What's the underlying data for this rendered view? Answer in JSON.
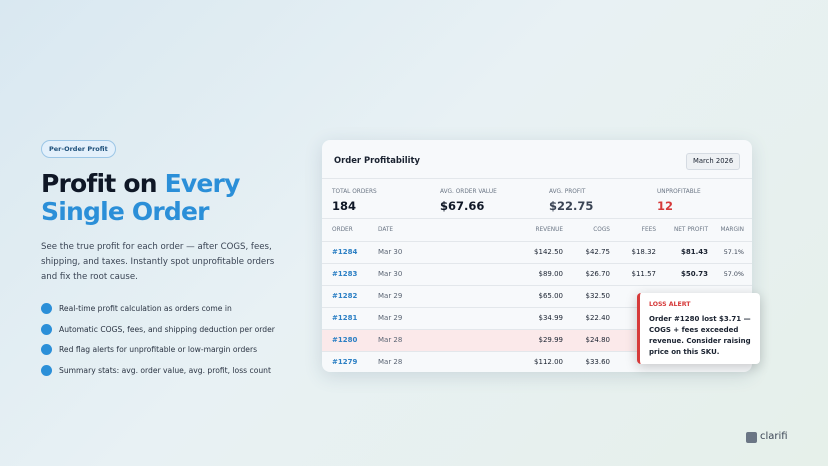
{
  "badge": "Per-Order Profit",
  "headline": {
    "plain": "Profit on",
    "highlight": "Every Single Order"
  },
  "description": "See the true profit for each order — after COGS, fees, shipping, and taxes. Instantly spot unprofitable orders and fix the root cause.",
  "features": [
    "Real-time profit calculation as orders come in",
    "Automatic COGS, fees, and shipping deduction per order",
    "Red flag alerts for unprofitable or low-margin orders",
    "Summary stats: avg. order value, avg. profit, loss count"
  ],
  "card": {
    "title": "Order Profitability",
    "date_button": "March 2026",
    "stats": [
      {
        "label": "TOTAL ORDERS",
        "value": "184"
      },
      {
        "label": "AVG. ORDER VALUE",
        "value": "$67.66"
      },
      {
        "label": "AVG. PROFIT",
        "value": "$22.75"
      },
      {
        "label": "UNPROFITABLE",
        "value": "12"
      }
    ],
    "table": {
      "headers": [
        "ORDER",
        "DATE",
        "REVENUE",
        "COGS",
        "FEES",
        "NET PROFIT",
        "MARGIN"
      ],
      "rows": [
        [
          "#1284",
          "Mar 30",
          "$142.50",
          "$42.75",
          "$18.32",
          "$81.43",
          "57.1%"
        ],
        [
          "#1283",
          "Mar 30",
          "$89.00",
          "$26.70",
          "$11.57",
          "$50.73",
          "57.0%"
        ],
        [
          "#1282",
          "Mar 29",
          "$65.00",
          "$32.50"
        ],
        [
          "#1281",
          "Mar 29",
          "$34.99",
          "$22.40"
        ],
        [
          "#1280",
          "Mar 28",
          "$29.99",
          "$24.80"
        ],
        [
          "#1279",
          "Mar 28",
          "$112.00",
          "$33.60"
        ]
      ]
    },
    "alert": {
      "title": "LOSS ALERT",
      "text": "Order #1280 lost $3.71 — COGS + fees exceeded revenue. Consider raising price on this SKU."
    }
  },
  "logo": "clarifi"
}
